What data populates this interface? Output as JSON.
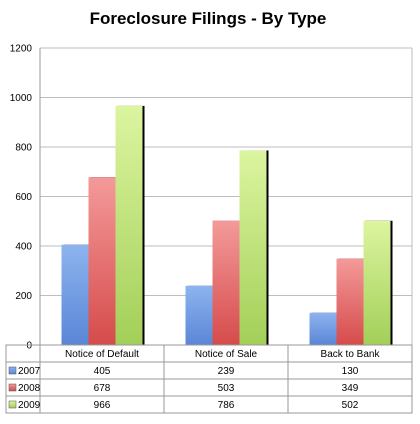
{
  "chart_data": {
    "type": "bar",
    "title": "Foreclosure Filings - By Type",
    "xlabel": "",
    "ylabel": "",
    "ylim": [
      0,
      1200
    ],
    "yticks": [
      0,
      200,
      400,
      600,
      800,
      1000,
      1200
    ],
    "grid": true,
    "legend": "data-table",
    "categories": [
      "Notice of Default",
      "Notice of Sale",
      "Back to Bank"
    ],
    "series": [
      {
        "name": "2007",
        "values": [
          405,
          239,
          130
        ],
        "color": "#6f9be0"
      },
      {
        "name": "2008",
        "values": [
          678,
          503,
          349
        ],
        "color": "#e36a6a"
      },
      {
        "name": "2009",
        "values": [
          966,
          786,
          502
        ],
        "color": "#c2e27a"
      }
    ]
  }
}
